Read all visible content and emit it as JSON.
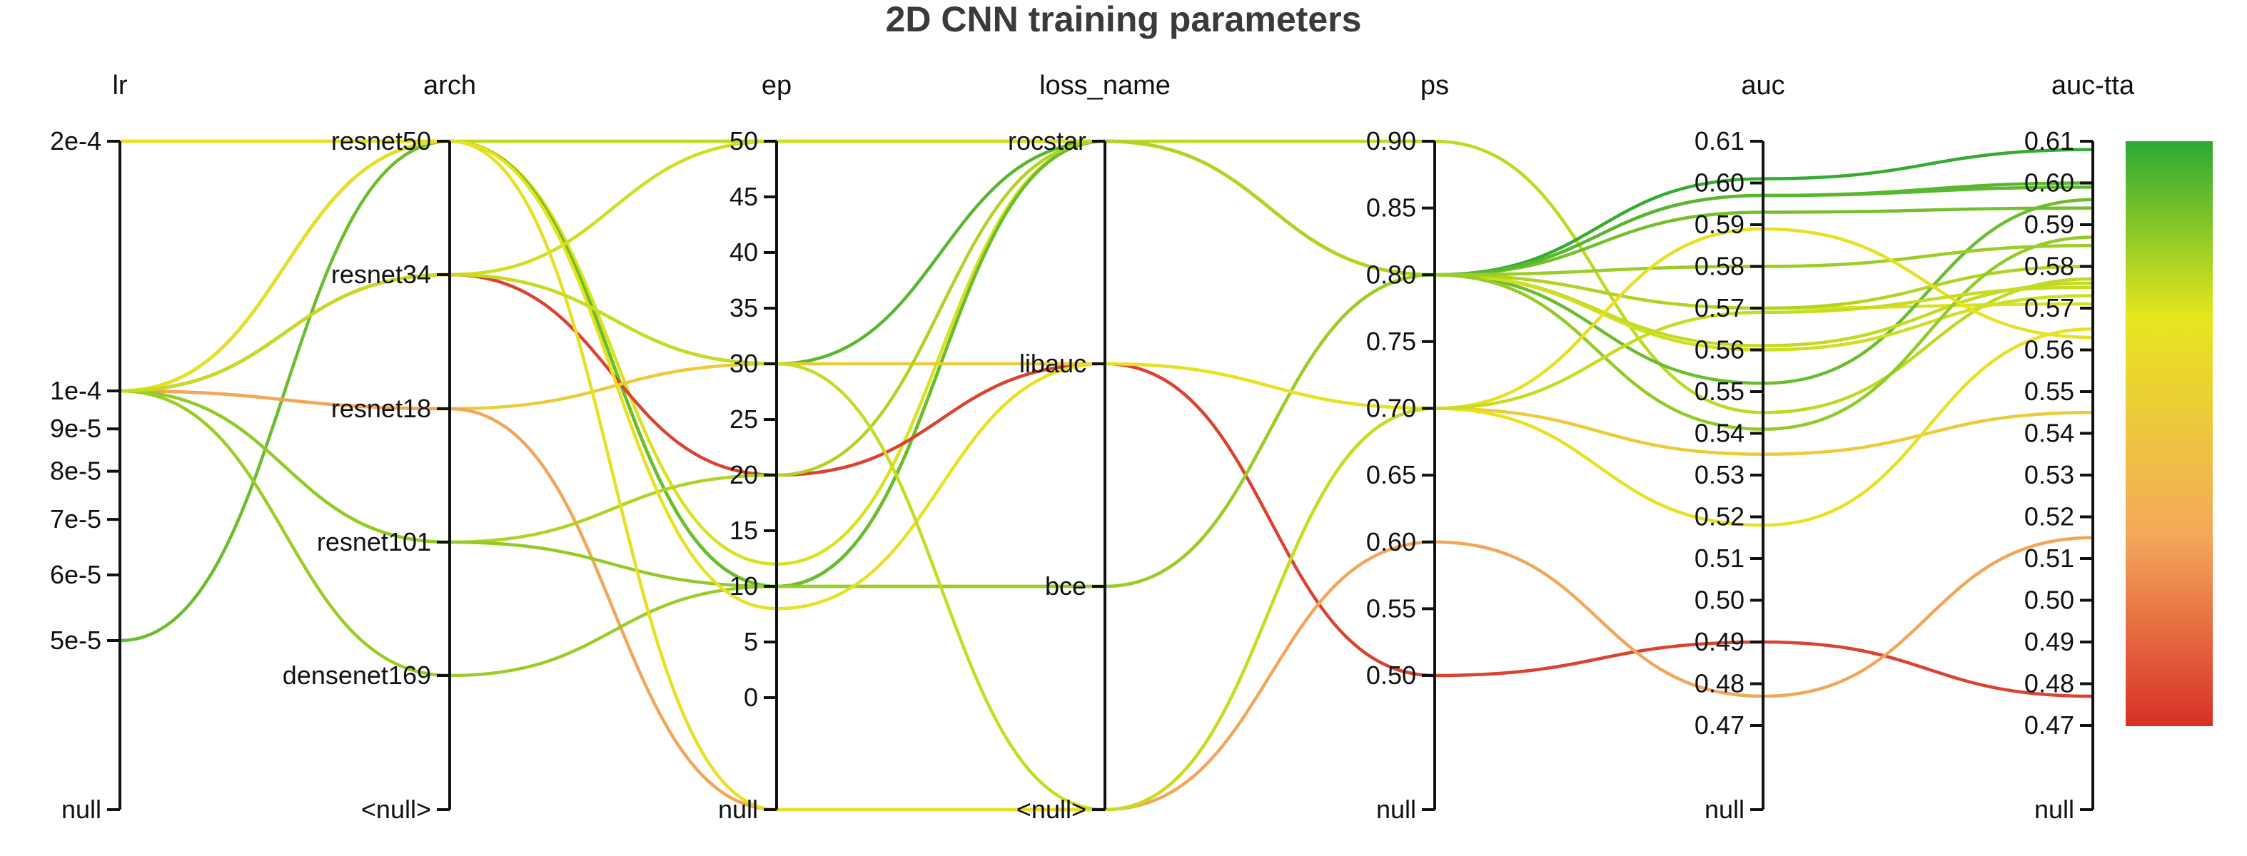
{
  "chart_data": {
    "type": "parallel_coordinates",
    "title": "2D CNN training parameters",
    "axes": [
      {
        "name": "lr",
        "kind": "log",
        "range": [
          5e-05,
          0.0002
        ],
        "ticks": [
          {
            "v": 0.0002,
            "label": "2e-4"
          },
          {
            "v": 0.0001,
            "label": "1e-4"
          },
          {
            "v": 9e-05,
            "label": "9e-5"
          },
          {
            "v": 8e-05,
            "label": "8e-5"
          },
          {
            "v": 7e-05,
            "label": "7e-5"
          },
          {
            "v": 6e-05,
            "label": "6e-5"
          },
          {
            "v": 5e-05,
            "label": "5e-5"
          }
        ],
        "null_label": "null"
      },
      {
        "name": "arch",
        "kind": "categorical",
        "categories": [
          "resnet50",
          "resnet34",
          "resnet18",
          "resnet101",
          "densenet169"
        ],
        "null_label": "<null>"
      },
      {
        "name": "ep",
        "kind": "linear",
        "range": [
          0,
          50
        ],
        "ticks": [
          {
            "v": 50,
            "label": "50"
          },
          {
            "v": 45,
            "label": "45"
          },
          {
            "v": 40,
            "label": "40"
          },
          {
            "v": 35,
            "label": "35"
          },
          {
            "v": 30,
            "label": "30"
          },
          {
            "v": 25,
            "label": "25"
          },
          {
            "v": 20,
            "label": "20"
          },
          {
            "v": 15,
            "label": "15"
          },
          {
            "v": 10,
            "label": "10"
          },
          {
            "v": 5,
            "label": "5"
          },
          {
            "v": 0,
            "label": "0"
          }
        ],
        "null_label": "null"
      },
      {
        "name": "loss_name",
        "kind": "categorical",
        "categories": [
          "rocstar",
          "libauc",
          "bce"
        ],
        "null_label": "<null>"
      },
      {
        "name": "ps",
        "kind": "linear",
        "range": [
          0.5,
          0.9
        ],
        "ticks": [
          {
            "v": 0.9,
            "label": "0.90"
          },
          {
            "v": 0.85,
            "label": "0.85"
          },
          {
            "v": 0.8,
            "label": "0.80"
          },
          {
            "v": 0.75,
            "label": "0.75"
          },
          {
            "v": 0.7,
            "label": "0.70"
          },
          {
            "v": 0.65,
            "label": "0.65"
          },
          {
            "v": 0.6,
            "label": "0.60"
          },
          {
            "v": 0.55,
            "label": "0.55"
          },
          {
            "v": 0.5,
            "label": "0.50"
          }
        ],
        "null_label": "null"
      },
      {
        "name": "auc",
        "kind": "linear",
        "range": [
          0.47,
          0.61
        ],
        "ticks": [
          {
            "v": 0.61,
            "label": "0.61"
          },
          {
            "v": 0.6,
            "label": "0.60"
          },
          {
            "v": 0.59,
            "label": "0.59"
          },
          {
            "v": 0.58,
            "label": "0.58"
          },
          {
            "v": 0.57,
            "label": "0.57"
          },
          {
            "v": 0.56,
            "label": "0.56"
          },
          {
            "v": 0.55,
            "label": "0.55"
          },
          {
            "v": 0.54,
            "label": "0.54"
          },
          {
            "v": 0.53,
            "label": "0.53"
          },
          {
            "v": 0.52,
            "label": "0.52"
          },
          {
            "v": 0.51,
            "label": "0.51"
          },
          {
            "v": 0.5,
            "label": "0.50"
          },
          {
            "v": 0.49,
            "label": "0.49"
          },
          {
            "v": 0.48,
            "label": "0.48"
          },
          {
            "v": 0.47,
            "label": "0.47"
          }
        ],
        "null_label": "null"
      },
      {
        "name": "auc-tta",
        "kind": "linear",
        "range": [
          0.47,
          0.61
        ],
        "ticks": [
          {
            "v": 0.61,
            "label": "0.61"
          },
          {
            "v": 0.6,
            "label": "0.60"
          },
          {
            "v": 0.59,
            "label": "0.59"
          },
          {
            "v": 0.58,
            "label": "0.58"
          },
          {
            "v": 0.57,
            "label": "0.57"
          },
          {
            "v": 0.56,
            "label": "0.56"
          },
          {
            "v": 0.55,
            "label": "0.55"
          },
          {
            "v": 0.54,
            "label": "0.54"
          },
          {
            "v": 0.53,
            "label": "0.53"
          },
          {
            "v": 0.52,
            "label": "0.52"
          },
          {
            "v": 0.51,
            "label": "0.51"
          },
          {
            "v": 0.5,
            "label": "0.50"
          },
          {
            "v": 0.49,
            "label": "0.49"
          },
          {
            "v": 0.48,
            "label": "0.48"
          },
          {
            "v": 0.47,
            "label": "0.47"
          }
        ],
        "null_label": "null"
      }
    ],
    "color_axis": "auc-tta",
    "color_range": [
      0.47,
      0.61
    ],
    "colorscale": [
      "#d73027",
      "#f4a95a",
      "#e6e61e",
      "#2ca833"
    ],
    "runs": [
      {
        "lr": 0.0002,
        "arch": "resnet50",
        "ep": 50,
        "loss_name": "rocstar",
        "ps": 0.9,
        "auc": 0.545,
        "auc-tta": 0.577
      },
      {
        "lr": 0.0001,
        "arch": "resnet50",
        "ep": 10,
        "loss_name": "rocstar",
        "ps": 0.8,
        "auc": 0.601,
        "auc-tta": 0.608
      },
      {
        "lr": 0.0001,
        "arch": "resnet50",
        "ep": 10,
        "loss_name": "rocstar",
        "ps": 0.8,
        "auc": 0.597,
        "auc-tta": 0.599
      },
      {
        "lr": 0.0001,
        "arch": "resnet50",
        "ep": 10,
        "loss_name": "rocstar",
        "ps": 0.8,
        "auc": 0.593,
        "auc-tta": 0.594
      },
      {
        "lr": 0.0001,
        "arch": "resnet50",
        "ep": 12,
        "loss_name": "rocstar",
        "ps": 0.8,
        "auc": 0.57,
        "auc-tta": 0.571
      },
      {
        "lr": 5e-05,
        "arch": "resnet50",
        "ep": 10,
        "loss_name": "rocstar",
        "ps": 0.8,
        "auc": 0.552,
        "auc-tta": 0.596
      },
      {
        "lr": 0.0001,
        "arch": "resnet34",
        "ep": 30,
        "loss_name": "rocstar",
        "ps": 0.8,
        "auc": 0.597,
        "auc-tta": 0.6
      },
      {
        "lr": 0.0001,
        "arch": "resnet34",
        "ep": 50,
        "loss_name": "rocstar",
        "ps": 0.8,
        "auc": 0.561,
        "auc-tta": 0.576
      },
      {
        "lr": 0.0001,
        "arch": "resnet34",
        "ep": 50,
        "loss_name": "rocstar",
        "ps": 0.8,
        "auc": 0.56,
        "auc-tta": 0.573
      },
      {
        "lr": 0.0001,
        "arch": "resnet34",
        "ep": 20,
        "loss_name": "libauc",
        "ps": 0.5,
        "auc": 0.49,
        "auc-tta": 0.477
      },
      {
        "lr": 0.0001,
        "arch": "resnet18",
        "ep": 30,
        "loss_name": "libauc",
        "ps": 0.7,
        "auc": 0.535,
        "auc-tta": 0.545
      },
      {
        "lr": 0.0001,
        "arch": "resnet18",
        "ep": null,
        "loss_name": null,
        "ps": 0.6,
        "auc": 0.477,
        "auc-tta": 0.515
      },
      {
        "lr": 0.0001,
        "arch": "resnet101",
        "ep": 20,
        "loss_name": "rocstar",
        "ps": 0.8,
        "auc": 0.57,
        "auc-tta": 0.58
      },
      {
        "lr": 0.0001,
        "arch": "resnet101",
        "ep": 10,
        "loss_name": "bce",
        "ps": 0.8,
        "auc": 0.541,
        "auc-tta": 0.587
      },
      {
        "lr": 0.0001,
        "arch": "densenet169",
        "ep": 10,
        "loss_name": "bce",
        "ps": 0.8,
        "auc": 0.58,
        "auc-tta": 0.585
      },
      {
        "lr": 0.0002,
        "arch": "resnet50",
        "ep": 8,
        "loss_name": "libauc",
        "ps": 0.7,
        "auc": 0.518,
        "auc-tta": 0.565
      },
      {
        "lr": 0.0001,
        "arch": "resnet50",
        "ep": null,
        "loss_name": null,
        "ps": 0.7,
        "auc": 0.589,
        "auc-tta": 0.563
      },
      {
        "lr": 0.0001,
        "arch": "resnet34",
        "ep": 30,
        "loss_name": null,
        "ps": 0.7,
        "auc": 0.569,
        "auc-tta": 0.575
      }
    ]
  }
}
